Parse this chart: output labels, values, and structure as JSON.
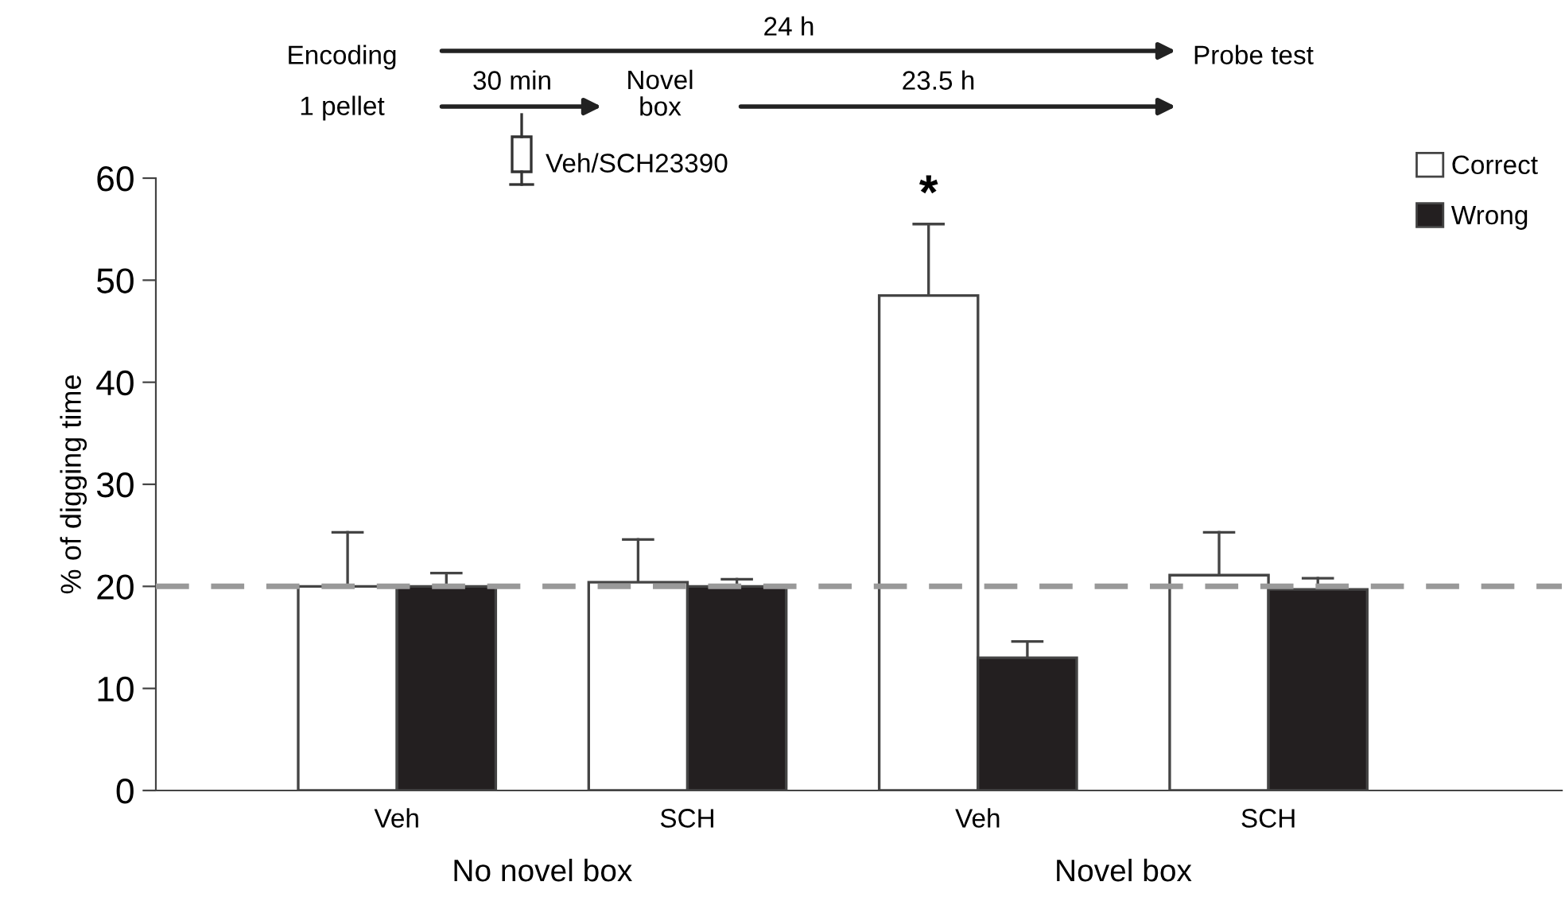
{
  "chart_data": {
    "type": "bar",
    "ylabel": "% of digging time",
    "categories": [
      "Veh",
      "SCH",
      "Veh",
      "SCH"
    ],
    "series": [
      {
        "name": "Correct",
        "color": "#ffffff",
        "values": [
          20.0,
          20.4,
          48.5,
          21.1
        ],
        "errors": [
          [
            20.0,
            25.3
          ],
          [
            20.4,
            24.6
          ],
          [
            48.5,
            55.5
          ],
          [
            21.1,
            25.3
          ]
        ]
      },
      {
        "name": "Wrong",
        "color": "#231f20",
        "values": [
          20.0,
          20.0,
          13.0,
          19.7
        ],
        "errors": [
          [
            20.0,
            21.3
          ],
          [
            20.0,
            20.7
          ],
          [
            13.0,
            14.6
          ],
          [
            19.7,
            20.8
          ]
        ]
      }
    ],
    "ylim": [
      0,
      60
    ],
    "yticks": [
      0,
      10,
      20,
      30,
      40,
      50,
      60
    ],
    "ref_lines": [
      {
        "axis": "y",
        "value": 20,
        "color": "#999999",
        "line_style": "dashed"
      }
    ],
    "legend": "top right",
    "grid": false,
    "annotations": [
      "No novel box",
      "Novel box",
      "*",
      "Encoding",
      "1 pellet",
      "24 h",
      "Probe test",
      "30 min",
      "Novel\nbox",
      "23.5 h",
      "Veh/SCH23390"
    ]
  }
}
